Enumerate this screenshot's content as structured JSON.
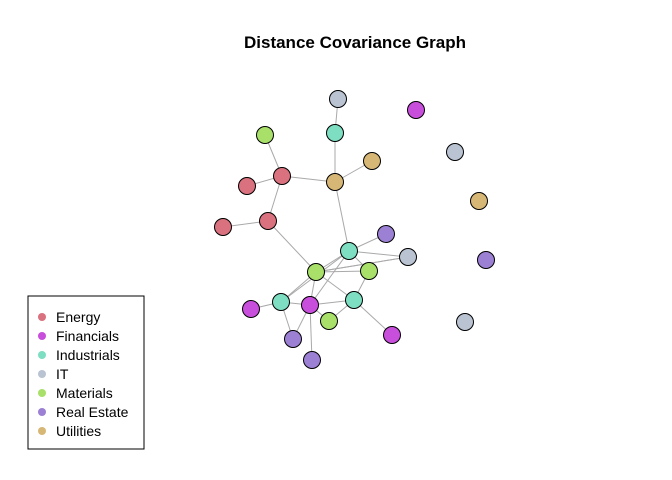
{
  "title": "Distance Covariance Graph",
  "legend": {
    "entries": [
      {
        "label": "Energy",
        "color": "#D9717E"
      },
      {
        "label": "Financials",
        "color": "#C84FDB"
      },
      {
        "label": "Industrials",
        "color": "#7DDEC2"
      },
      {
        "label": "IT",
        "color": "#B9C3D1"
      },
      {
        "label": "Materials",
        "color": "#A8E06A"
      },
      {
        "label": "Real Estate",
        "color": "#9B80D4"
      },
      {
        "label": "Utilities",
        "color": "#D7B776"
      }
    ]
  },
  "graph": {
    "nodes": [
      {
        "id": 0,
        "sector": "IT"
      },
      {
        "id": 1,
        "sector": "Financials"
      },
      {
        "id": 2,
        "sector": "Materials"
      },
      {
        "id": 3,
        "sector": "Industrials"
      },
      {
        "id": 4,
        "sector": "IT"
      },
      {
        "id": 5,
        "sector": "Utilities"
      },
      {
        "id": 6,
        "sector": "Energy"
      },
      {
        "id": 7,
        "sector": "Energy"
      },
      {
        "id": 8,
        "sector": "Utilities"
      },
      {
        "id": 9,
        "sector": "Utilities"
      },
      {
        "id": 10,
        "sector": "Energy"
      },
      {
        "id": 11,
        "sector": "Energy"
      },
      {
        "id": 12,
        "sector": "Real Estate"
      },
      {
        "id": 13,
        "sector": "Industrials"
      },
      {
        "id": 14,
        "sector": "IT"
      },
      {
        "id": 15,
        "sector": "Real Estate"
      },
      {
        "id": 16,
        "sector": "Materials"
      },
      {
        "id": 17,
        "sector": "Materials"
      },
      {
        "id": 18,
        "sector": "Financials"
      },
      {
        "id": 19,
        "sector": "Industrials"
      },
      {
        "id": 20,
        "sector": "Financials"
      },
      {
        "id": 21,
        "sector": "Industrials"
      },
      {
        "id": 22,
        "sector": "IT"
      },
      {
        "id": 23,
        "sector": "Materials"
      },
      {
        "id": 24,
        "sector": "Financials"
      },
      {
        "id": 25,
        "sector": "Real Estate"
      },
      {
        "id": 26,
        "sector": "Real Estate"
      }
    ],
    "edges": [
      [
        0,
        3
      ],
      [
        3,
        8
      ],
      [
        2,
        7
      ],
      [
        7,
        8
      ],
      [
        5,
        8
      ],
      [
        7,
        6
      ],
      [
        7,
        11
      ],
      [
        11,
        10
      ],
      [
        11,
        16
      ],
      [
        8,
        13
      ],
      [
        12,
        13
      ],
      [
        13,
        14
      ],
      [
        13,
        16
      ],
      [
        13,
        17
      ],
      [
        13,
        19
      ],
      [
        13,
        20
      ],
      [
        16,
        17
      ],
      [
        16,
        20
      ],
      [
        16,
        19
      ],
      [
        16,
        21
      ],
      [
        16,
        14
      ],
      [
        17,
        21
      ],
      [
        19,
        20
      ],
      [
        19,
        25
      ],
      [
        20,
        21
      ],
      [
        20,
        23
      ],
      [
        20,
        25
      ],
      [
        20,
        26
      ],
      [
        21,
        23
      ],
      [
        21,
        24
      ],
      [
        18,
        19
      ],
      [
        14,
        16
      ]
    ]
  }
}
